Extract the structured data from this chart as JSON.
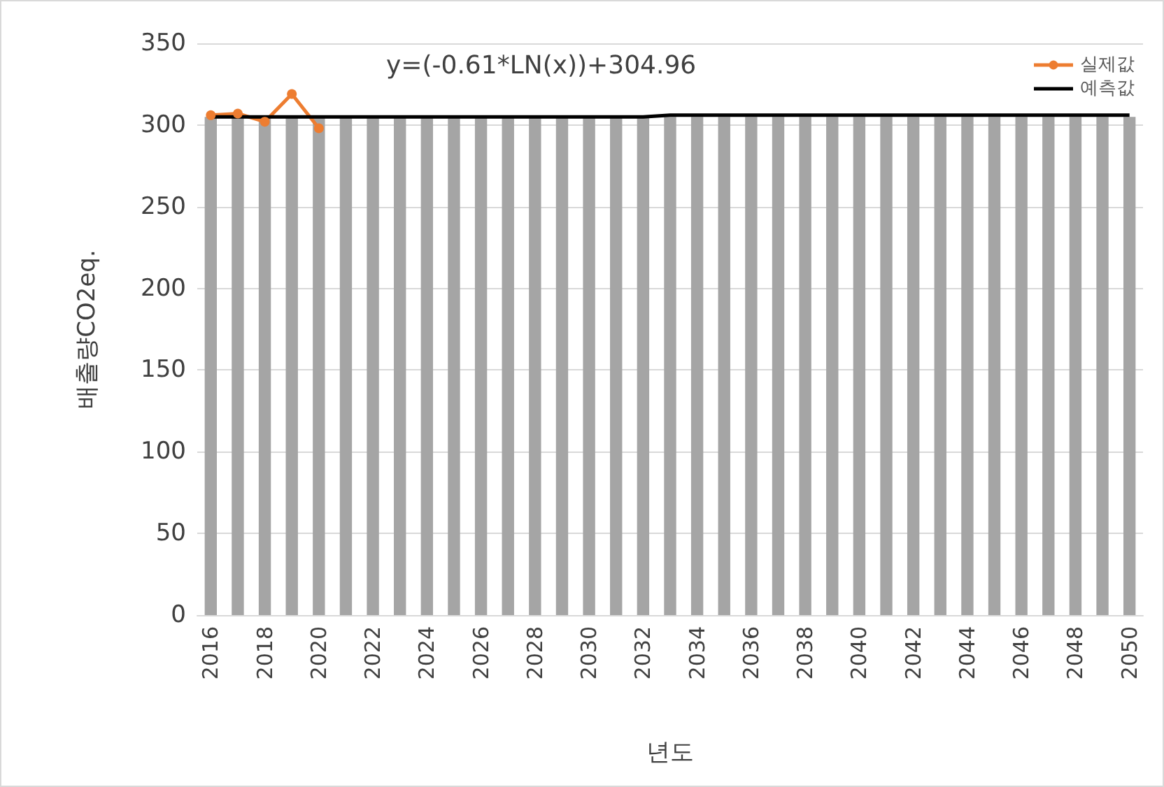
{
  "chart_data": {
    "type": "bar",
    "categories": [
      "2016",
      null,
      "2018",
      null,
      "2020",
      null,
      "2022",
      null,
      "2024",
      null,
      "2026",
      null,
      "2028",
      null,
      "2030",
      null,
      "2032",
      null,
      "2034",
      null,
      "2036",
      null,
      "2038",
      null,
      "2040",
      null,
      "2042",
      null,
      "2044",
      null,
      "2046",
      null,
      "2048",
      null,
      "2050"
    ],
    "series": [
      {
        "color": "#a5a5a5",
        "values": [
          305,
          305,
          305,
          305,
          305,
          305,
          305,
          305,
          305,
          305,
          305,
          305,
          305,
          305,
          305,
          305,
          305,
          305,
          305,
          305,
          305,
          305,
          305,
          305,
          305,
          305,
          305,
          305,
          305,
          305,
          305,
          305,
          305,
          305,
          305
        ]
      },
      {
        "type": "line",
        "name": "실제값",
        "color": "#ed7d31",
        "marker": "circle",
        "values": [
          306,
          307,
          302,
          319,
          298,
          null,
          null,
          null,
          null,
          null,
          null,
          null,
          null,
          null,
          null,
          null,
          null,
          null,
          null,
          null,
          null,
          null,
          null,
          null,
          null,
          null,
          null,
          null,
          null,
          null,
          null,
          null,
          null,
          null,
          null
        ]
      },
      {
        "type": "line",
        "name": "예측값",
        "color": "#000000",
        "marker": "none",
        "values": [
          305,
          305,
          305,
          305,
          305,
          305,
          305,
          305,
          305,
          305,
          305,
          305,
          305,
          305,
          305,
          305,
          305,
          306,
          306,
          306,
          306,
          306,
          306,
          306,
          306,
          306,
          306,
          306,
          306,
          306,
          306,
          306,
          306,
          306,
          306
        ]
      }
    ],
    "ylim": [
      0,
      350
    ],
    "yticks": [
      0,
      50,
      100,
      150,
      200,
      250,
      300,
      350
    ],
    "ylabel": "배출량CO2eq.",
    "xlabel": "년도",
    "annotations": [
      "y=(-0.61*LN(x))+304.96"
    ],
    "grid": "y",
    "legend": "top right"
  }
}
